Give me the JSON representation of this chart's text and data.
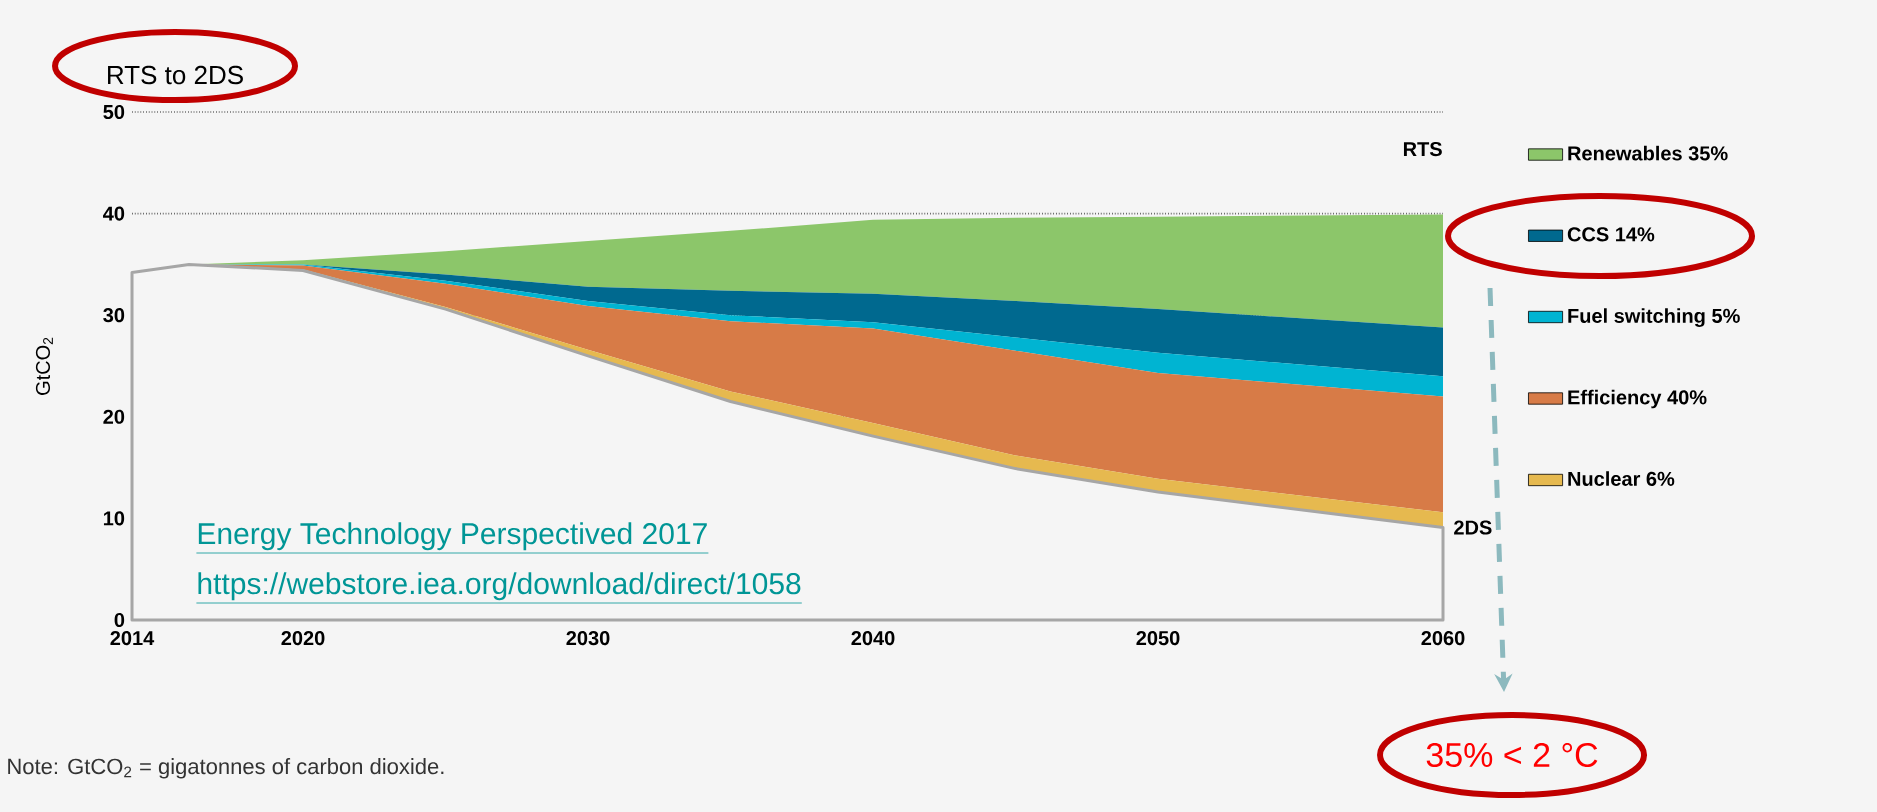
{
  "chart_data": {
    "type": "area",
    "title": "RTS to 2DS",
    "ylabel": "GtCO$_{2}$",
    "stacked": true,
    "grid": "y",
    "legend": "right",
    "x": [
      2014,
      2016,
      2020,
      2025,
      2030,
      2035,
      2040,
      2045,
      2050,
      2060
    ],
    "xlim": [
      2014,
      2060
    ],
    "xticks": [
      2014,
      2020,
      2030,
      2040,
      2050,
      2060
    ],
    "ylim": [
      0,
      50
    ],
    "yticks": [
      0,
      10,
      20,
      30,
      40,
      50
    ],
    "series": [
      {
        "name": "2DS",
        "color": "#a6a6a6",
        "values": [
          34.2,
          35.0,
          34.4,
          30.6,
          26.0,
          21.5,
          18.1,
          14.9,
          12.6,
          9.1
        ]
      },
      {
        "name": "Nuclear 6%",
        "color": "#e6b94f",
        "values": [
          0,
          0,
          0.1,
          0.2,
          0.6,
          1.0,
          1.3,
          1.3,
          1.3,
          1.5
        ]
      },
      {
        "name": "Efficiency 40%",
        "color": "#d77b47",
        "values": [
          0,
          0,
          0.4,
          2.3,
          4.3,
          6.9,
          9.3,
          10.3,
          10.4,
          11.4
        ]
      },
      {
        "name": "Fuel switching 5%",
        "color": "#00b4d2",
        "values": [
          0,
          0,
          0.1,
          0.3,
          0.5,
          0.6,
          0.6,
          1.3,
          2.0,
          2.0
        ]
      },
      {
        "name": "CCS 14%",
        "color": "#00698f",
        "values": [
          0,
          0,
          0,
          0.6,
          1.4,
          2.4,
          2.8,
          3.6,
          4.3,
          4.8
        ]
      },
      {
        "name": "Renewables 35%",
        "color": "#8cc66a",
        "values": [
          0,
          0,
          0.4,
          2.3,
          4.5,
          5.9,
          7.3,
          8.2,
          9.1,
          11.1
        ]
      }
    ],
    "annotations": [
      "RTS",
      "Energy Technology Perspectived 2017",
      "https://webstore.iea.org/download/direct/1058",
      "Note: GtCO$_{2}$ = gigatonnes of carbon dioxide.",
      "35% < 2 °C"
    ]
  }
}
